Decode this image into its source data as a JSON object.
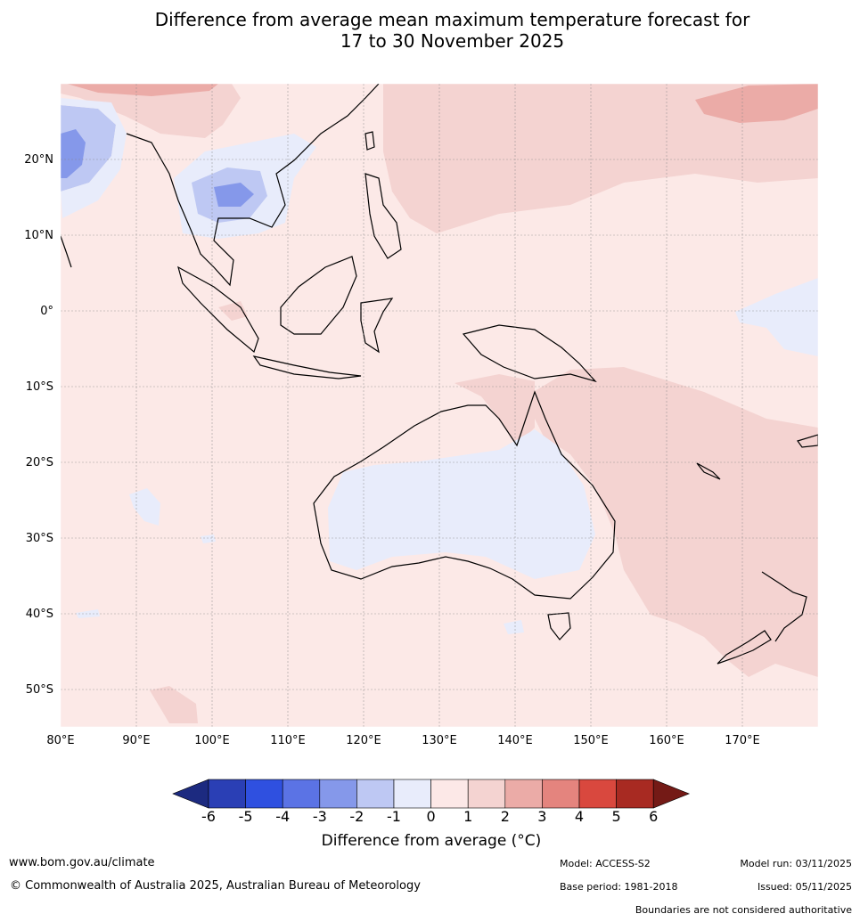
{
  "title": {
    "line1": "Difference from average mean maximum temperature forecast for",
    "line2": "17 to 30 November 2025"
  },
  "map": {
    "lon_range": [
      80,
      180
    ],
    "lat_range": [
      -55,
      30
    ],
    "lat_ticks": [
      {
        "value": 20,
        "label": "20°N"
      },
      {
        "value": 10,
        "label": "10°N"
      },
      {
        "value": 0,
        "label": "0°"
      },
      {
        "value": -10,
        "label": "10°S"
      },
      {
        "value": -20,
        "label": "20°S"
      },
      {
        "value": -30,
        "label": "30°S"
      },
      {
        "value": -40,
        "label": "40°S"
      },
      {
        "value": -50,
        "label": "50°S"
      }
    ],
    "lon_ticks": [
      {
        "value": 80,
        "label": "80°E"
      },
      {
        "value": 90,
        "label": "90°E"
      },
      {
        "value": 100,
        "label": "100°E"
      },
      {
        "value": 110,
        "label": "110°E"
      },
      {
        "value": 120,
        "label": "120°E"
      },
      {
        "value": 130,
        "label": "130°E"
      },
      {
        "value": 140,
        "label": "140°E"
      },
      {
        "value": 150,
        "label": "150°E"
      },
      {
        "value": 160,
        "label": "160°E"
      },
      {
        "value": 170,
        "label": "170°E"
      }
    ],
    "background_category": "0 to 1",
    "regions": [
      {
        "name": "Western Pacific north of equator",
        "category": "1 to 2"
      },
      {
        "name": "North-east Pacific high anomaly",
        "category": "2 to 3"
      },
      {
        "name": "Tasman Sea and New Zealand",
        "category": "1 to 2"
      },
      {
        "name": "Northern Australia and New Guinea",
        "category": "1 to 2"
      },
      {
        "name": "Central Australia",
        "category": "-1 to 0"
      },
      {
        "name": "Bay of Bengal",
        "category": "-1 to 0"
      },
      {
        "name": "Bay of Bengal core",
        "category": "-3 to -2"
      },
      {
        "name": "Indochina",
        "category": "-1 to 0"
      },
      {
        "name": "Indochina core",
        "category": "-3 to -2"
      },
      {
        "name": "Central equatorial Pacific",
        "category": "-1 to 0"
      },
      {
        "name": "Southern Indian Ocean patches",
        "category": "-1 to 0"
      },
      {
        "name": "Himalaya region",
        "category": "1 to 3"
      }
    ]
  },
  "colorbar": {
    "title": "Difference from average (°C)",
    "ticks": [
      "-6",
      "-5",
      "-4",
      "-3",
      "-2",
      "-1",
      "0",
      "1",
      "2",
      "3",
      "4",
      "5",
      "6"
    ],
    "colors": [
      "#1c2a80",
      "#2a3fb5",
      "#2f50e0",
      "#5b73e5",
      "#8598ea",
      "#bec8f3",
      "#e8ecfb",
      "#fce8e7",
      "#f4d3d1",
      "#ebaba7",
      "#e4847e",
      "#d9483e",
      "#a82a22",
      "#741a16"
    ]
  },
  "footer": {
    "website": "www.bom.gov.au/climate",
    "copyright": "© Commonwealth of Australia 2025, Australian Bureau of Meteorology",
    "model": "Model: ACCESS-S2",
    "base_period": "Base period: 1981-2018",
    "model_run": "Model run: 03/11/2025",
    "issued": "Issued: 05/11/2025",
    "disclaimer": "Boundaries are not considered authoritative"
  }
}
